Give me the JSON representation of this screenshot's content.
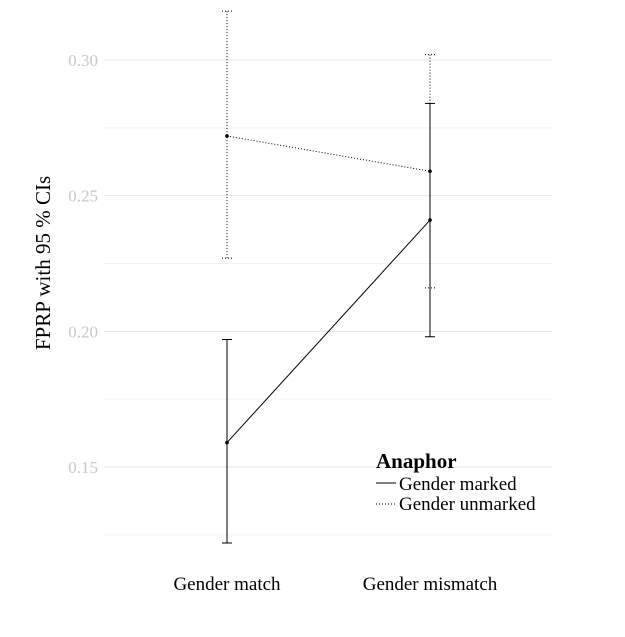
{
  "chart_data": {
    "type": "line",
    "ylabel": "FPRP with 95 % CIs",
    "xlabel": "",
    "categories": [
      "Gender match",
      "Gender mismatch"
    ],
    "y_ticks": [
      "0.15",
      "0.20",
      "0.25",
      "0.30"
    ],
    "ylim": [
      0.12,
      0.32
    ],
    "grid": "horizontal",
    "legend": {
      "title": "Anaphor",
      "position": "bottom-right",
      "entries": [
        "Gender marked",
        "Gender unmarked"
      ]
    },
    "series": [
      {
        "name": "Gender marked",
        "style": "solid",
        "values": [
          0.159,
          0.241
        ],
        "ci_low": [
          0.122,
          0.198
        ],
        "ci_high": [
          0.197,
          0.284
        ]
      },
      {
        "name": "Gender unmarked",
        "style": "dotted",
        "values": [
          0.272,
          0.259
        ],
        "ci_low": [
          0.227,
          0.216
        ],
        "ci_high": [
          0.318,
          0.302
        ]
      }
    ]
  }
}
